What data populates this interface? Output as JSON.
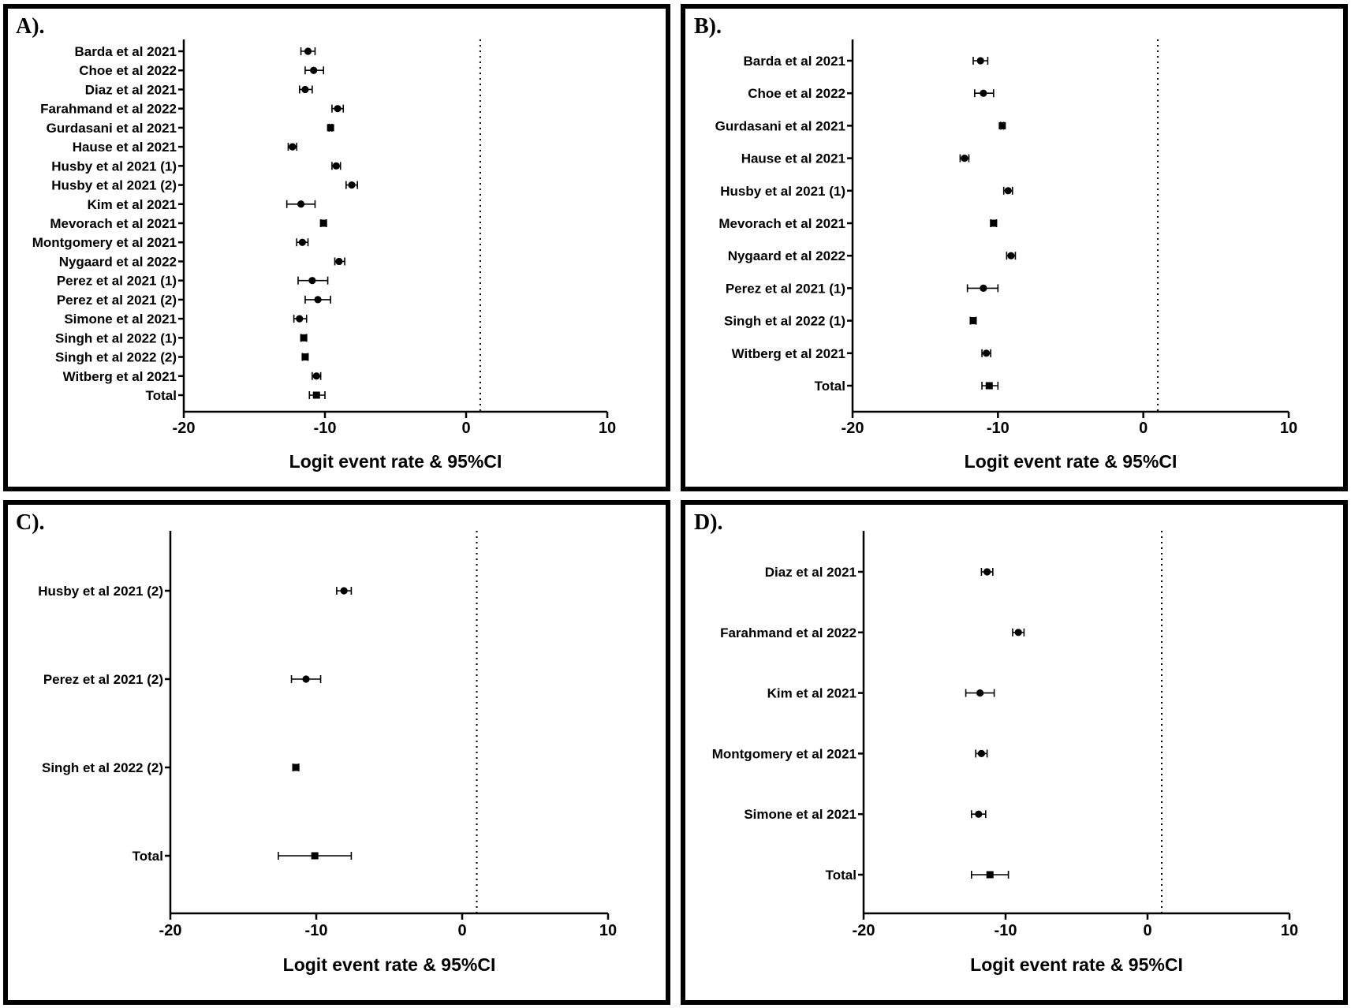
{
  "chart_data": [
    {
      "type": "forest",
      "panel_label": "A).",
      "xlabel": "Logit event rate & 95%CI",
      "xlim": [
        -20,
        10
      ],
      "xticks": [
        -20,
        -10,
        0,
        10
      ],
      "reference_line": 1,
      "studies": [
        {
          "label": "Barda et al 2021",
          "estimate": -11.2,
          "lower": -11.7,
          "upper": -10.7,
          "marker": "circle"
        },
        {
          "label": "Choe et al 2022",
          "estimate": -10.8,
          "lower": -11.4,
          "upper": -10.1,
          "marker": "circle"
        },
        {
          "label": "Diaz et al 2021",
          "estimate": -11.4,
          "lower": -11.8,
          "upper": -10.9,
          "marker": "circle"
        },
        {
          "label": "Farahmand et al 2022",
          "estimate": -9.1,
          "lower": -9.5,
          "upper": -8.7,
          "marker": "circle"
        },
        {
          "label": "Gurdasani et al 2021",
          "estimate": -9.6,
          "lower": -9.7,
          "upper": -9.5,
          "marker": "square"
        },
        {
          "label": "Hause et al 2021",
          "estimate": -12.3,
          "lower": -12.6,
          "upper": -12.0,
          "marker": "circle"
        },
        {
          "label": "Husby et al 2021 (1)",
          "estimate": -9.2,
          "lower": -9.5,
          "upper": -8.9,
          "marker": "circle"
        },
        {
          "label": "Husby et al 2021 (2)",
          "estimate": -8.1,
          "lower": -8.5,
          "upper": -7.7,
          "marker": "circle"
        },
        {
          "label": "Kim et al 2021",
          "estimate": -11.7,
          "lower": -12.7,
          "upper": -10.7,
          "marker": "circle"
        },
        {
          "label": "Mevorach et al 2021",
          "estimate": -10.1,
          "lower": -10.3,
          "upper": -9.9,
          "marker": "square"
        },
        {
          "label": "Montgomery et al 2021",
          "estimate": -11.6,
          "lower": -12.0,
          "upper": -11.2,
          "marker": "circle"
        },
        {
          "label": "Nygaard et al 2022",
          "estimate": -9.0,
          "lower": -9.3,
          "upper": -8.6,
          "marker": "circle"
        },
        {
          "label": "Perez et al 2021 (1)",
          "estimate": -10.9,
          "lower": -11.9,
          "upper": -9.8,
          "marker": "circle"
        },
        {
          "label": "Perez et al 2021 (2)",
          "estimate": -10.5,
          "lower": -11.4,
          "upper": -9.6,
          "marker": "circle"
        },
        {
          "label": "Simone et al 2021",
          "estimate": -11.8,
          "lower": -12.2,
          "upper": -11.3,
          "marker": "circle"
        },
        {
          "label": "Singh et al 2022 (1)",
          "estimate": -11.5,
          "lower": -11.7,
          "upper": -11.3,
          "marker": "square"
        },
        {
          "label": "Singh et al 2022 (2)",
          "estimate": -11.4,
          "lower": -11.6,
          "upper": -11.2,
          "marker": "square"
        },
        {
          "label": "Witberg et al 2021",
          "estimate": -10.6,
          "lower": -10.9,
          "upper": -10.3,
          "marker": "circle"
        },
        {
          "label": "Total",
          "estimate": -10.6,
          "lower": -11.1,
          "upper": -10.0,
          "marker": "square"
        }
      ]
    },
    {
      "type": "forest",
      "panel_label": "B).",
      "xlabel": "Logit event rate & 95%CI",
      "xlim": [
        -20,
        10
      ],
      "xticks": [
        -20,
        -10,
        0,
        10
      ],
      "reference_line": 1,
      "studies": [
        {
          "label": "Barda et al 2021",
          "estimate": -11.2,
          "lower": -11.7,
          "upper": -10.7,
          "marker": "circle"
        },
        {
          "label": "Choe et al 2022",
          "estimate": -11.0,
          "lower": -11.6,
          "upper": -10.3,
          "marker": "circle"
        },
        {
          "label": "Gurdasani et al 2021",
          "estimate": -9.7,
          "lower": -9.8,
          "upper": -9.6,
          "marker": "square"
        },
        {
          "label": "Hause et al 2021",
          "estimate": -12.3,
          "lower": -12.6,
          "upper": -12.0,
          "marker": "circle"
        },
        {
          "label": "Husby et al 2021 (1)",
          "estimate": -9.3,
          "lower": -9.6,
          "upper": -9.0,
          "marker": "circle"
        },
        {
          "label": "Mevorach et al 2021",
          "estimate": -10.3,
          "lower": -10.5,
          "upper": -10.1,
          "marker": "square"
        },
        {
          "label": "Nygaard et al 2022",
          "estimate": -9.1,
          "lower": -9.4,
          "upper": -8.8,
          "marker": "circle"
        },
        {
          "label": "Perez et al 2021 (1)",
          "estimate": -11.0,
          "lower": -12.1,
          "upper": -10.0,
          "marker": "circle"
        },
        {
          "label": "Singh et al 2022 (1)",
          "estimate": -11.7,
          "lower": -11.9,
          "upper": -11.5,
          "marker": "square"
        },
        {
          "label": "Witberg et al 2021",
          "estimate": -10.8,
          "lower": -11.1,
          "upper": -10.5,
          "marker": "circle"
        },
        {
          "label": "Total",
          "estimate": -10.6,
          "lower": -11.1,
          "upper": -10.0,
          "marker": "square"
        }
      ]
    },
    {
      "type": "forest",
      "panel_label": "C).",
      "xlabel": "Logit event rate & 95%CI",
      "xlim": [
        -20,
        10
      ],
      "xticks": [
        -20,
        -10,
        0,
        10
      ],
      "reference_line": 1,
      "studies": [
        {
          "label": "Husby et al 2021 (2)",
          "estimate": -8.1,
          "lower": -8.6,
          "upper": -7.6,
          "marker": "circle"
        },
        {
          "label": "Perez et al 2021 (2)",
          "estimate": -10.7,
          "lower": -11.7,
          "upper": -9.7,
          "marker": "circle"
        },
        {
          "label": "Singh et al 2022 (2)",
          "estimate": -11.4,
          "lower": -11.6,
          "upper": -11.2,
          "marker": "square"
        },
        {
          "label": "Total",
          "estimate": -10.1,
          "lower": -12.6,
          "upper": -7.6,
          "marker": "square"
        }
      ]
    },
    {
      "type": "forest",
      "panel_label": "D).",
      "xlabel": "Logit event rate & 95%CI",
      "xlim": [
        -20,
        10
      ],
      "xticks": [
        -20,
        -10,
        0,
        10
      ],
      "reference_line": 1,
      "studies": [
        {
          "label": "Diaz et al 2021",
          "estimate": -11.3,
          "lower": -11.7,
          "upper": -10.9,
          "marker": "circle"
        },
        {
          "label": "Farahmand et al 2022",
          "estimate": -9.1,
          "lower": -9.5,
          "upper": -8.7,
          "marker": "circle"
        },
        {
          "label": "Kim et al 2021",
          "estimate": -11.8,
          "lower": -12.8,
          "upper": -10.8,
          "marker": "circle"
        },
        {
          "label": "Montgomery et al 2021",
          "estimate": -11.7,
          "lower": -12.1,
          "upper": -11.3,
          "marker": "circle"
        },
        {
          "label": "Simone et al 2021",
          "estimate": -11.9,
          "lower": -12.4,
          "upper": -11.4,
          "marker": "circle"
        },
        {
          "label": "Total",
          "estimate": -11.1,
          "lower": -12.4,
          "upper": -9.8,
          "marker": "square"
        }
      ]
    }
  ]
}
